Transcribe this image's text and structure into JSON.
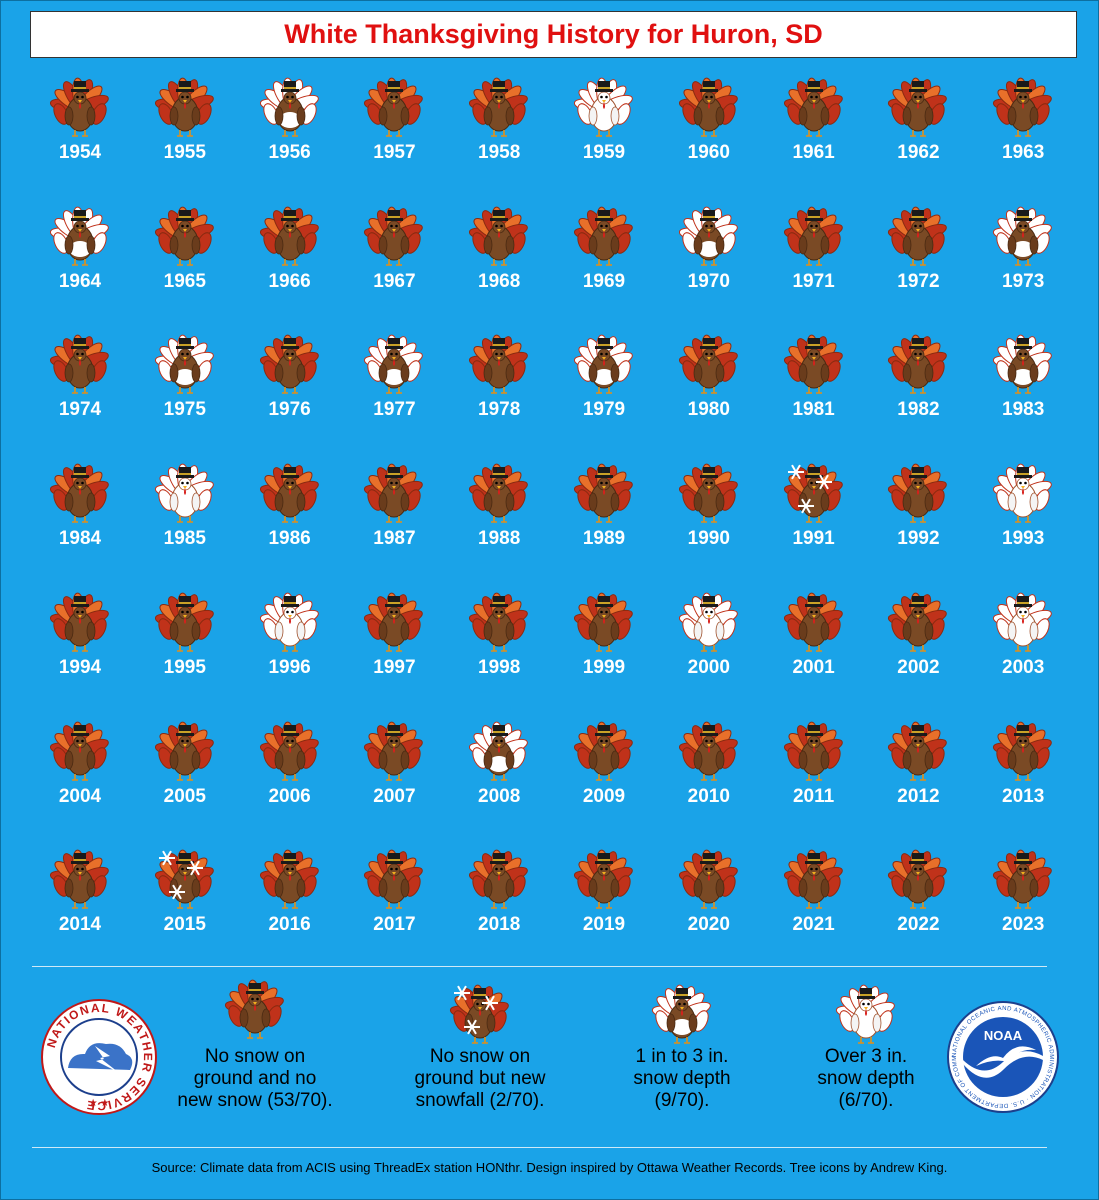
{
  "title": "White Thanksgiving History for Huron, SD",
  "colors": {
    "background": "#1aa3e8",
    "title": "#e01010",
    "year_label": "#ffffff",
    "turkey_body": "#7a4a25",
    "feather_red": "#c0321a",
    "feather_orange": "#e8702a",
    "snow": "#ffffff"
  },
  "chart_data": {
    "type": "table",
    "title": "White Thanksgiving History for Huron, SD",
    "categories": [
      "none",
      "new_snow",
      "depth_1_3",
      "depth_over_3"
    ],
    "years": [
      {
        "year": "1954",
        "cat": "none"
      },
      {
        "year": "1955",
        "cat": "none"
      },
      {
        "year": "1956",
        "cat": "depth_1_3"
      },
      {
        "year": "1957",
        "cat": "none"
      },
      {
        "year": "1958",
        "cat": "none"
      },
      {
        "year": "1959",
        "cat": "depth_over_3"
      },
      {
        "year": "1960",
        "cat": "none"
      },
      {
        "year": "1961",
        "cat": "none"
      },
      {
        "year": "1962",
        "cat": "none"
      },
      {
        "year": "1963",
        "cat": "none"
      },
      {
        "year": "1964",
        "cat": "depth_1_3"
      },
      {
        "year": "1965",
        "cat": "none"
      },
      {
        "year": "1966",
        "cat": "none"
      },
      {
        "year": "1967",
        "cat": "none"
      },
      {
        "year": "1968",
        "cat": "none"
      },
      {
        "year": "1969",
        "cat": "none"
      },
      {
        "year": "1970",
        "cat": "depth_1_3"
      },
      {
        "year": "1971",
        "cat": "none"
      },
      {
        "year": "1972",
        "cat": "none"
      },
      {
        "year": "1973",
        "cat": "depth_1_3"
      },
      {
        "year": "1974",
        "cat": "none"
      },
      {
        "year": "1975",
        "cat": "depth_1_3"
      },
      {
        "year": "1976",
        "cat": "none"
      },
      {
        "year": "1977",
        "cat": "depth_1_3"
      },
      {
        "year": "1978",
        "cat": "none"
      },
      {
        "year": "1979",
        "cat": "depth_1_3"
      },
      {
        "year": "1980",
        "cat": "none"
      },
      {
        "year": "1981",
        "cat": "none"
      },
      {
        "year": "1982",
        "cat": "none"
      },
      {
        "year": "1983",
        "cat": "depth_1_3"
      },
      {
        "year": "1984",
        "cat": "none"
      },
      {
        "year": "1985",
        "cat": "depth_over_3"
      },
      {
        "year": "1986",
        "cat": "none"
      },
      {
        "year": "1987",
        "cat": "none"
      },
      {
        "year": "1988",
        "cat": "none"
      },
      {
        "year": "1989",
        "cat": "none"
      },
      {
        "year": "1990",
        "cat": "none"
      },
      {
        "year": "1991",
        "cat": "new_snow"
      },
      {
        "year": "1992",
        "cat": "none"
      },
      {
        "year": "1993",
        "cat": "depth_over_3"
      },
      {
        "year": "1994",
        "cat": "none"
      },
      {
        "year": "1995",
        "cat": "none"
      },
      {
        "year": "1996",
        "cat": "depth_over_3"
      },
      {
        "year": "1997",
        "cat": "none"
      },
      {
        "year": "1998",
        "cat": "none"
      },
      {
        "year": "1999",
        "cat": "none"
      },
      {
        "year": "2000",
        "cat": "depth_over_3"
      },
      {
        "year": "2001",
        "cat": "none"
      },
      {
        "year": "2002",
        "cat": "none"
      },
      {
        "year": "2003",
        "cat": "depth_over_3"
      },
      {
        "year": "2004",
        "cat": "none"
      },
      {
        "year": "2005",
        "cat": "none"
      },
      {
        "year": "2006",
        "cat": "none"
      },
      {
        "year": "2007",
        "cat": "none"
      },
      {
        "year": "2008",
        "cat": "depth_1_3"
      },
      {
        "year": "2009",
        "cat": "none"
      },
      {
        "year": "2010",
        "cat": "none"
      },
      {
        "year": "2011",
        "cat": "none"
      },
      {
        "year": "2012",
        "cat": "none"
      },
      {
        "year": "2013",
        "cat": "none"
      },
      {
        "year": "2014",
        "cat": "none"
      },
      {
        "year": "2015",
        "cat": "new_snow"
      },
      {
        "year": "2016",
        "cat": "none"
      },
      {
        "year": "2017",
        "cat": "none"
      },
      {
        "year": "2018",
        "cat": "none"
      },
      {
        "year": "2019",
        "cat": "none"
      },
      {
        "year": "2020",
        "cat": "none"
      },
      {
        "year": "2021",
        "cat": "none"
      },
      {
        "year": "2022",
        "cat": "none"
      },
      {
        "year": "2023",
        "cat": "none"
      }
    ],
    "legend": [
      {
        "cat": "none",
        "label_lines": [
          "No snow on",
          "ground and no",
          "new snow (53/70)."
        ]
      },
      {
        "cat": "new_snow",
        "label_lines": [
          "No snow on",
          "ground but new",
          "snowfall (2/70)."
        ]
      },
      {
        "cat": "depth_1_3",
        "label_lines": [
          "1 in to 3 in.",
          "snow depth",
          "(9/70)."
        ]
      },
      {
        "cat": "depth_over_3",
        "label_lines": [
          "Over 3 in.",
          "snow depth",
          "(6/70)."
        ]
      }
    ]
  },
  "logos": {
    "nws_text": "NATIONAL WEATHER SERVICE",
    "noaa_text": "NOAA",
    "noaa_ring_text": "NATIONAL OCEANIC AND ATMOSPHERIC ADMINISTRATION · U.S. DEPARTMENT OF COMMERCE"
  },
  "source": "Source: Climate data from ACIS using ThreadEx station HONthr. Design inspired by Ottawa Weather Records. Tree icons by Andrew King."
}
